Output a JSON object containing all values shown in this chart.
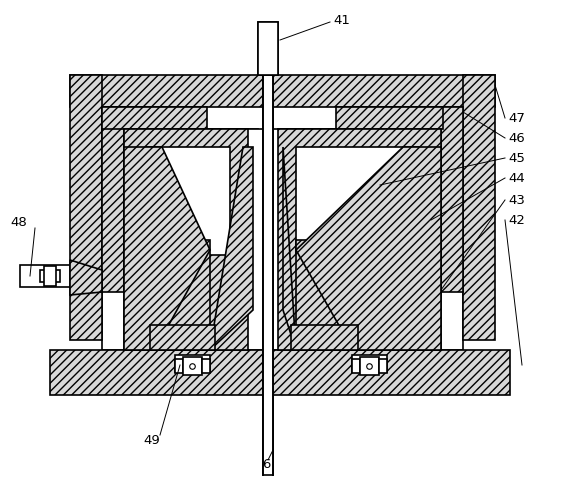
{
  "bg_color": "#ffffff",
  "line_color": "#000000",
  "hatch_fc": "#d8d8d8",
  "line_width": 1.2,
  "thin_line": 0.7,
  "figsize": [
    5.61,
    5.01
  ],
  "dpi": 100
}
